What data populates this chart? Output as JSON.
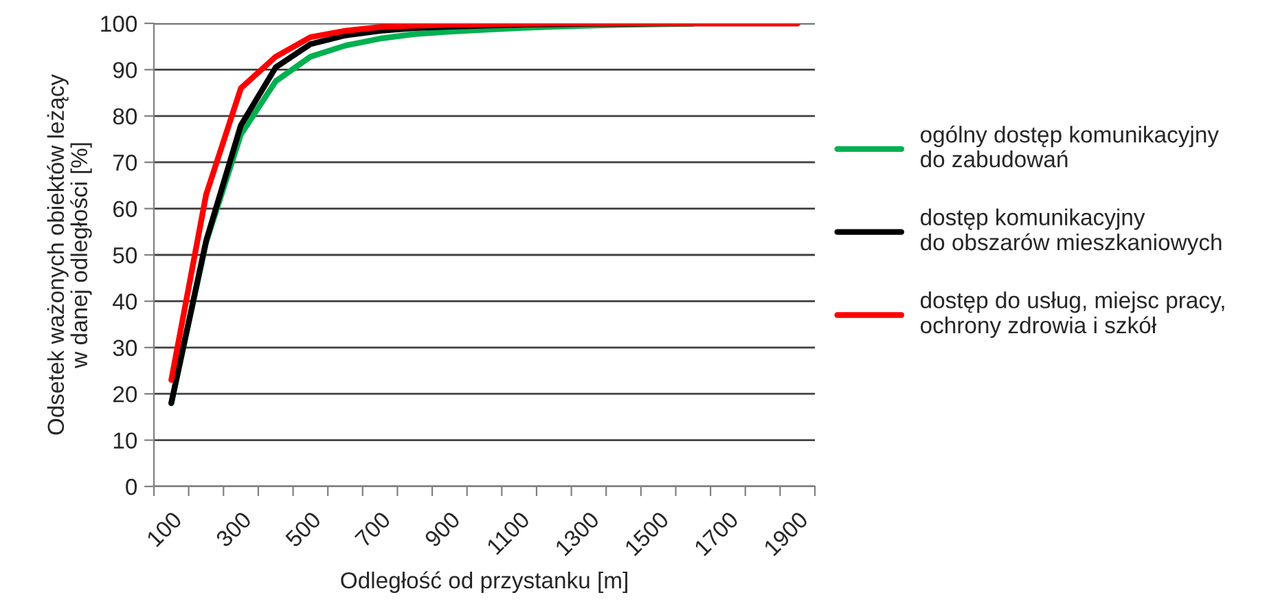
{
  "chart_data": {
    "type": "line",
    "xlabel": "Odległość od przystanku [m]",
    "ylabel": "Odsetek ważonych obiektów leżący\nw danej odległości [%]",
    "categories": [
      "100",
      null,
      "300",
      null,
      "500",
      null,
      "700",
      null,
      "900",
      null,
      "1100",
      null,
      "1300",
      null,
      "1500",
      null,
      "1700",
      null,
      "1900"
    ],
    "series": [
      {
        "name": "ogólny dostęp komunikacyjny\ndo zabudowań",
        "color": "#00b050",
        "values": [
          18,
          52.7,
          76,
          87.5,
          92.8,
          95.2,
          96.7,
          97.7,
          98.2,
          98.6,
          99,
          99.3,
          99.5,
          99.7,
          99.8,
          99.9,
          null,
          null,
          null
        ]
      },
      {
        "name": "dostęp komunikacyjny\ndo obszarów mieszkaniowych",
        "color": "#000000",
        "values": [
          18,
          53,
          78,
          90.5,
          95.5,
          97.4,
          98.4,
          99,
          99.3,
          99.5,
          99.7,
          99.8,
          99.9,
          99.9,
          100,
          100,
          100,
          100,
          100
        ]
      },
      {
        "name": "dostęp do usług, miejsc pracy,\nochrony zdrowia i szkół",
        "color": "#ff0000",
        "values": [
          23,
          63,
          86,
          92.8,
          97,
          98.4,
          99.2,
          99.5,
          99.7,
          99.8,
          99.9,
          100,
          100,
          100,
          100,
          100,
          100,
          100,
          100
        ]
      }
    ],
    "ylim": [
      0,
      100
    ],
    "yticks": [
      0,
      10,
      20,
      30,
      40,
      50,
      60,
      70,
      80,
      90,
      100
    ],
    "grid": "y",
    "legend": "right",
    "marker": "none",
    "line_style": "solid"
  }
}
